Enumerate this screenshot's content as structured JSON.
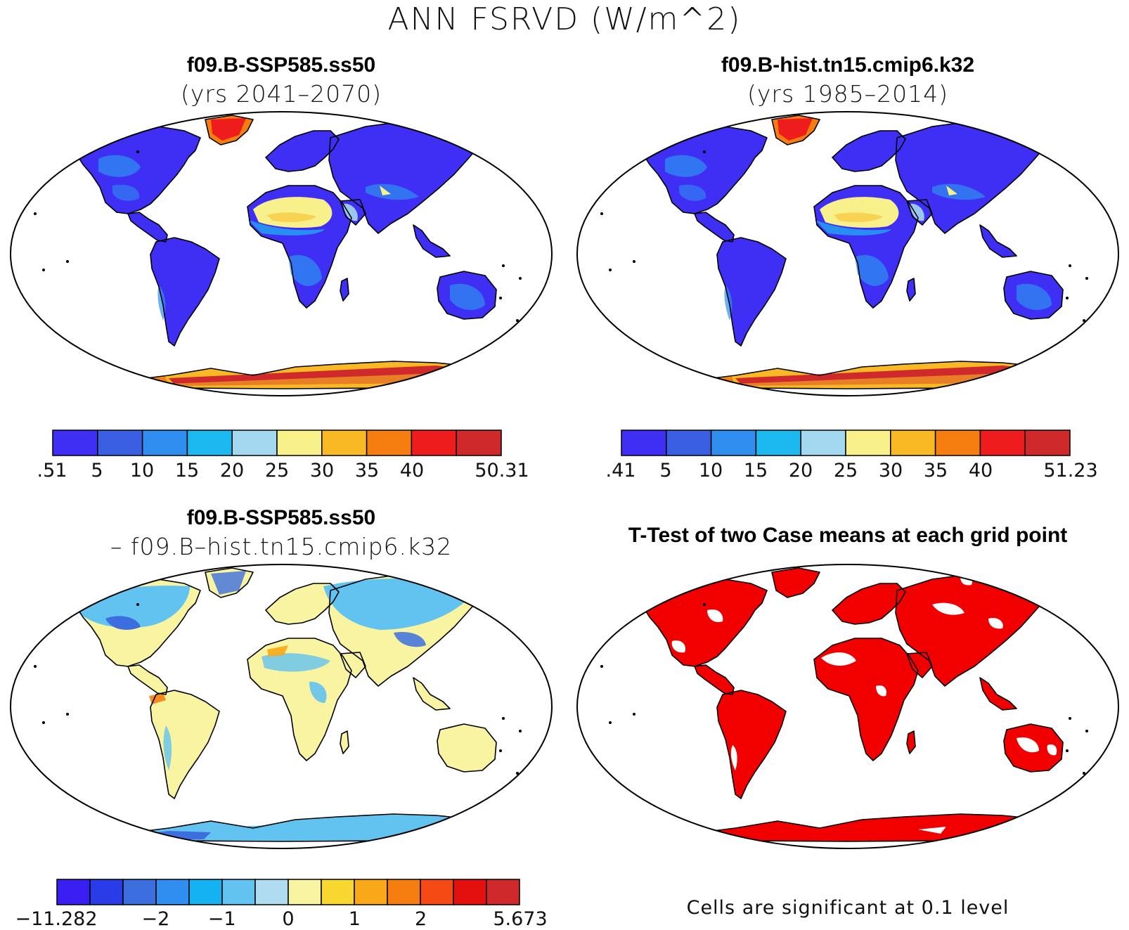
{
  "figure": {
    "title": "ANN FSRVD (W/m^2)"
  },
  "panels": {
    "top_left": {
      "title": "f09.B-SSP585.ss50",
      "subtitle": "(yrs 2041–2070)",
      "colorbar": {
        "colors": [
          "#3f2ff5",
          "#3b5fe3",
          "#2f8ef0",
          "#1cb8f0",
          "#a4d8f0",
          "#f8f08a",
          "#f8b924",
          "#f67e10",
          "#ee1c1c",
          "#d0292b"
        ],
        "labels": [
          ".51",
          "5",
          "10",
          "15",
          "20",
          "25",
          "30",
          "35",
          "40",
          "50.31"
        ],
        "label_slots": [
          0,
          1,
          2,
          3,
          4,
          5,
          6,
          7,
          8,
          10
        ]
      }
    },
    "top_right": {
      "title": "f09.B-hist.tn15.cmip6.k32",
      "subtitle": "(yrs 1985–2014)",
      "colorbar": {
        "colors": [
          "#3f2ff5",
          "#3b5fe3",
          "#2f8ef0",
          "#1cb8f0",
          "#a4d8f0",
          "#f8f08a",
          "#f8b924",
          "#f67e10",
          "#ee1c1c",
          "#d0292b"
        ],
        "labels": [
          ".41",
          "5",
          "10",
          "15",
          "20",
          "25",
          "30",
          "35",
          "40",
          "51.23"
        ],
        "label_slots": [
          0,
          1,
          2,
          3,
          4,
          5,
          6,
          7,
          8,
          10
        ]
      }
    },
    "bottom_left": {
      "title": "f09.B-SSP585.ss50",
      "subtitle": "– f09.B–hist.tn15.cmip6.k32",
      "colorbar": {
        "colors": [
          "#3a1ff2",
          "#2a3be8",
          "#3c6ee0",
          "#2f8ef0",
          "#14b2f0",
          "#62c2f0",
          "#b0dcf2",
          "#f8f4a2",
          "#f8d830",
          "#f8a818",
          "#f67e10",
          "#f64a14",
          "#e41010",
          "#d0292b"
        ],
        "labels": [
          "−11.282",
          "−2",
          "−1",
          "0",
          "1",
          "2",
          "5.673"
        ],
        "label_slots": [
          0,
          3,
          5,
          7,
          9,
          11,
          14
        ]
      }
    },
    "bottom_right": {
      "title": "T-Test of two Case means at each grid point",
      "footnote": "Cells are significant at 0.1 level",
      "significant_color": "#f20000"
    }
  },
  "map_colors": {
    "land_low": "#3f2ff5",
    "land_mid": "#2f8ef0",
    "desert": "#f8f08a",
    "ice": "#d0292b",
    "ice_edge": "#f8b924",
    "diff_pos": "#f8f4a2",
    "diff_neg": "#62c2f0",
    "diff_strong_neg": "#3c6ee0",
    "ttest": "#f20000",
    "outline": "#000000"
  }
}
